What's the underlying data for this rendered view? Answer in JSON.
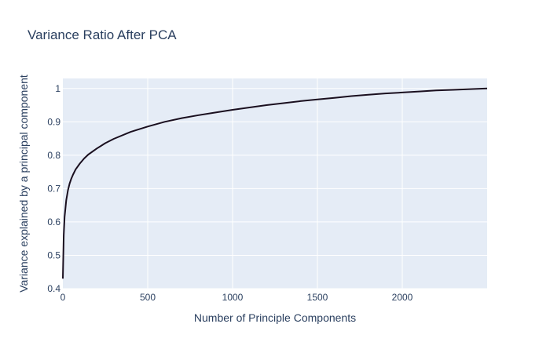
{
  "chart_data": {
    "type": "line",
    "title": "Variance Ratio After PCA",
    "xlabel": "Number of Principle Components",
    "ylabel": "Variance explained by a principal component",
    "xlim": [
      0,
      2500
    ],
    "ylim": [
      0.4,
      1.03
    ],
    "xticks": [
      0,
      500,
      1000,
      1500,
      2000
    ],
    "xtick_labels": [
      "0",
      "500",
      "1000",
      "1500",
      "2000"
    ],
    "yticks": [
      0.4,
      0.5,
      0.6,
      0.7,
      0.8,
      0.9,
      1.0
    ],
    "ytick_labels": [
      "0.4",
      "0.5",
      "0.6",
      "0.7",
      "0.8",
      "0.9",
      "1"
    ],
    "grid": true,
    "plot_background": "#e5ecf6",
    "gridline_color": "#ffffff",
    "text_color": "#2a3f5f",
    "series": [
      {
        "color": "#1a0f1f",
        "x": [
          0,
          5,
          10,
          20,
          30,
          40,
          50,
          60,
          75,
          100,
          125,
          150,
          200,
          250,
          300,
          400,
          500,
          600,
          700,
          800,
          900,
          1000,
          1100,
          1200,
          1300,
          1400,
          1500,
          1600,
          1700,
          1800,
          1900,
          2000,
          2100,
          2200,
          2300,
          2400,
          2500
        ],
        "y": [
          0.43,
          0.56,
          0.615,
          0.665,
          0.695,
          0.715,
          0.73,
          0.742,
          0.757,
          0.775,
          0.79,
          0.802,
          0.82,
          0.836,
          0.849,
          0.87,
          0.886,
          0.9,
          0.911,
          0.92,
          0.928,
          0.936,
          0.943,
          0.95,
          0.956,
          0.962,
          0.967,
          0.972,
          0.977,
          0.981,
          0.985,
          0.988,
          0.991,
          0.994,
          0.996,
          0.998,
          1.0
        ]
      }
    ]
  }
}
